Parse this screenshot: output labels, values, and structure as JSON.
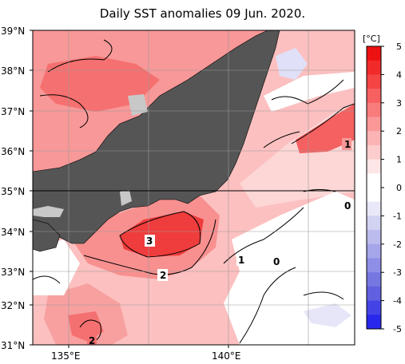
{
  "title": "Daily SST anomalies 09 Jun. 2020.",
  "colorbar": {
    "unit": "[°C]",
    "ticks": [
      "5",
      "4",
      "3",
      "2",
      "1",
      "0",
      "-1",
      "-2",
      "-3",
      "-4",
      "-5"
    ],
    "colors": [
      "#ee1111",
      "#f22a2a",
      "#f54444",
      "#f76060",
      "#f87c7c",
      "#fa9898",
      "#fbb3b3",
      "#fdcccc",
      "#fee6e6",
      "#ffffff",
      "#ffffff",
      "#e8e8f8",
      "#d2d2f2",
      "#bbbbee",
      "#a5a5ea",
      "#8e8ee6",
      "#7777e2",
      "#6060e0",
      "#4444e6",
      "#2828ec"
    ]
  },
  "axes": {
    "lat_labels": [
      "39°N",
      "38°N",
      "37°N",
      "36°N",
      "35°N",
      "34°N",
      "33°N",
      "32°N",
      "31°N"
    ],
    "lon_labels": [
      "135°E",
      "140°E"
    ]
  },
  "contour_labels": [
    "1",
    "0",
    "3",
    "2",
    "1",
    "0",
    "2"
  ],
  "colors": {
    "land": "#555555",
    "missing": "#c8c8c8",
    "grid": "#999999"
  }
}
